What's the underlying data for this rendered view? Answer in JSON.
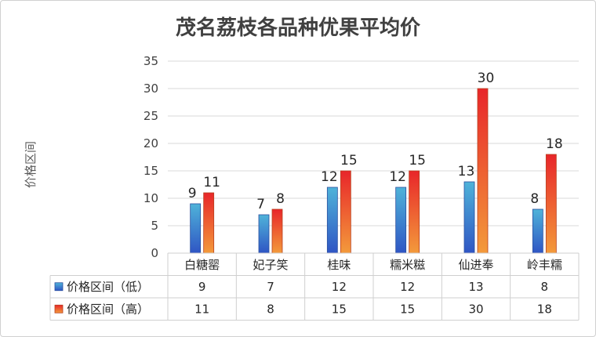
{
  "chart_data": {
    "type": "bar",
    "title": "茂名荔枝各品种优果平均价",
    "ylabel": "价格区间",
    "xlabel": "",
    "ylim": [
      0,
      35
    ],
    "yticks": [
      0,
      5,
      10,
      15,
      20,
      25,
      30,
      35
    ],
    "grid": true,
    "legend": "data-table",
    "categories": [
      "白糖罂",
      "妃子笑",
      "桂味",
      "糯米糍",
      "仙进奉",
      "岭丰糯"
    ],
    "series": [
      {
        "name": "价格区间（低）",
        "values": [
          9,
          7,
          12,
          12,
          13,
          8
        ],
        "color_top": "#4FB3D9",
        "color_bottom": "#2F55C4"
      },
      {
        "name": "价格区间（高）",
        "values": [
          11,
          8,
          15,
          15,
          30,
          18
        ],
        "color_top": "#E8262A",
        "color_bottom": "#F39A3B"
      }
    ]
  }
}
